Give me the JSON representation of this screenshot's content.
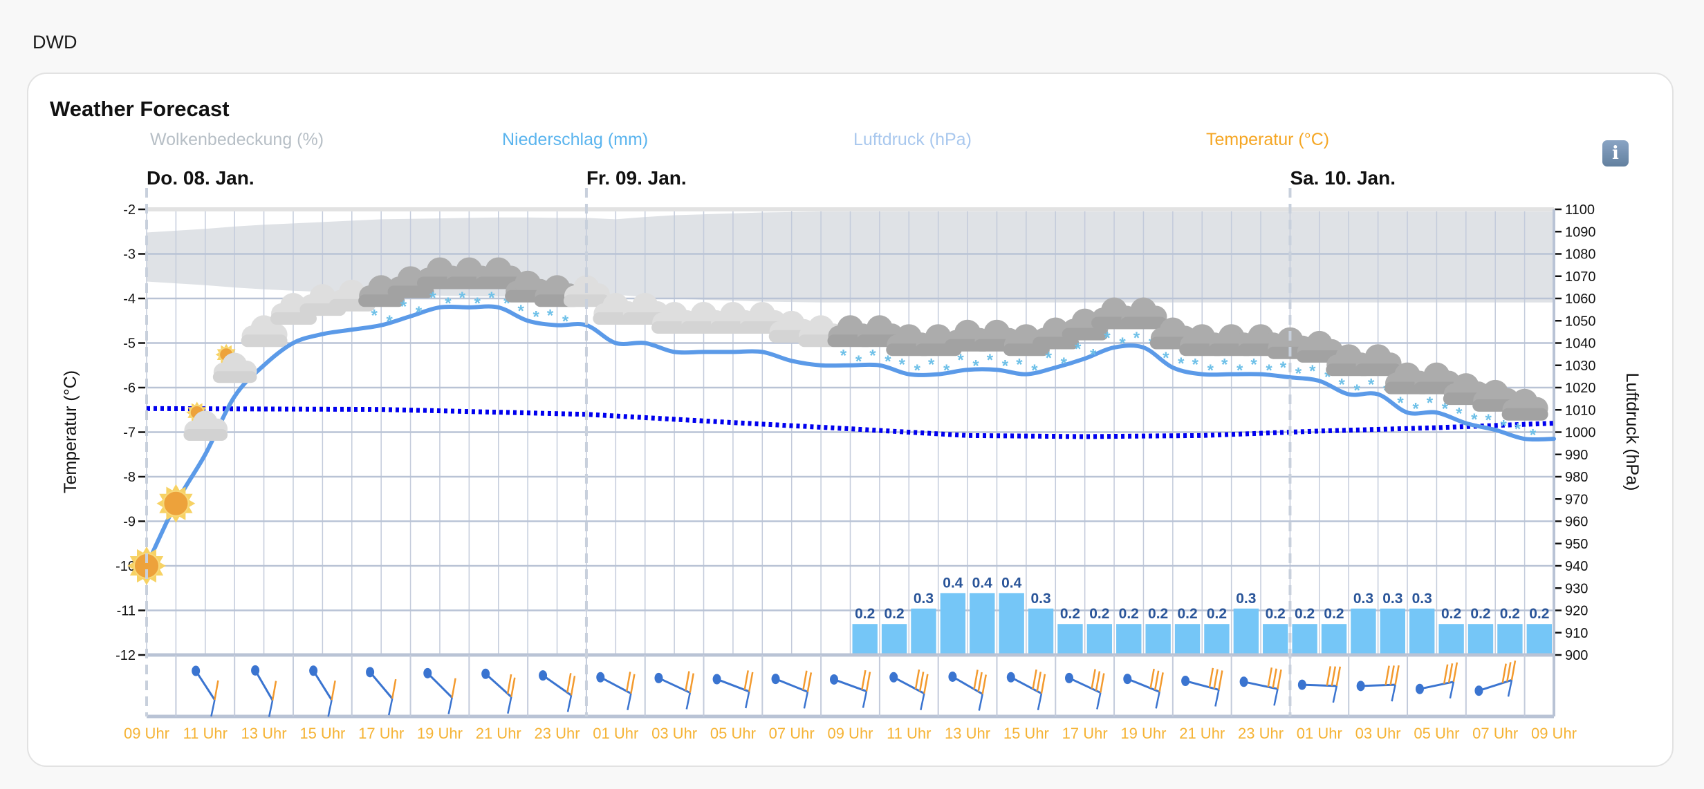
{
  "app_title": "DWD",
  "card_title": "Weather Forecast",
  "info_icon": "info-icon",
  "colors": {
    "cloud_cover": "#b7bfc6",
    "precipitation": "#5ab4ee",
    "pressure": "#a9c8ee",
    "temperature": "#f5a623",
    "temp_line": "#5b9ae8",
    "pressure_line": "#0000ee",
    "bar": "#75c6f7",
    "bar_label": "#2a5599",
    "band": "#dfe2e6"
  },
  "chart_data": {
    "type": "line",
    "legend": [
      "Wolkenbedeckung (%)",
      "Niederschlag (mm)",
      "Luftdruck (hPa)",
      "Temperatur (°C)"
    ],
    "legend_position": "top",
    "ylabel_left": "Temperatur (°C)",
    "ylabel_right": "Luftdruck (hPa)",
    "ylim_left": [
      -12,
      -2
    ],
    "ylim_right": [
      900,
      1100
    ],
    "left_ticks": [
      "-2",
      "-3",
      "-4",
      "-5",
      "-6",
      "-7",
      "-8",
      "-9",
      "-10",
      "-11",
      "-12"
    ],
    "right_ticks": [
      "1100",
      "1090",
      "1080",
      "1070",
      "1060",
      "1050",
      "1040",
      "1030",
      "1020",
      "1010",
      "1000",
      "990",
      "980",
      "970",
      "960",
      "950",
      "940",
      "930",
      "920",
      "910",
      "900"
    ],
    "grid": true,
    "days": [
      {
        "label": "Do. 08. Jan.",
        "hour": 0
      },
      {
        "label": "Fr. 09. Jan.",
        "hour": 15
      },
      {
        "label": "Sa. 10. Jan.",
        "hour": 39
      }
    ],
    "x_labels": [
      "09 Uhr",
      "11 Uhr",
      "13 Uhr",
      "15 Uhr",
      "17 Uhr",
      "19 Uhr",
      "21 Uhr",
      "23 Uhr",
      "01 Uhr",
      "03 Uhr",
      "05 Uhr",
      "07 Uhr",
      "09 Uhr",
      "11 Uhr",
      "13 Uhr",
      "15 Uhr",
      "17 Uhr",
      "19 Uhr",
      "21 Uhr",
      "23 Uhr",
      "01 Uhr",
      "03 Uhr",
      "05 Uhr",
      "07 Uhr",
      "09 Uhr"
    ],
    "hours_total": 48,
    "temperature": [
      -10,
      -8.6,
      -7.5,
      -6.2,
      -5.5,
      -5.0,
      -4.8,
      -4.7,
      -4.6,
      -4.4,
      -4.2,
      -4.2,
      -4.2,
      -4.5,
      -4.6,
      -4.6,
      -5.0,
      -5.0,
      -5.2,
      -5.2,
      -5.2,
      -5.2,
      -5.4,
      -5.5,
      -5.5,
      -5.5,
      -5.7,
      -5.7,
      -5.6,
      -5.6,
      -5.7,
      -5.55,
      -5.35,
      -5.1,
      -5.1,
      -5.55,
      -5.7,
      -5.7,
      -5.7,
      -5.77,
      -5.85,
      -6.15,
      -6.15,
      -6.56,
      -6.56,
      -6.8,
      -6.95,
      -7.15,
      -7.15
    ],
    "pressure": {
      "hours": [
        0,
        8,
        15,
        20,
        24,
        28,
        32,
        36,
        40,
        44,
        48
      ],
      "values": [
        1010.6,
        1010.2,
        1008,
        1004.3,
        1001.5,
        998.5,
        998,
        998.5,
        1000.5,
        1002,
        1004
      ]
    },
    "cloud_cover": [
      54,
      58,
      62,
      67,
      71,
      74,
      77,
      80,
      83,
      84,
      85,
      86,
      87,
      87,
      86,
      86,
      83,
      88,
      92,
      94,
      96,
      98,
      99,
      100,
      100,
      100,
      100,
      100,
      100,
      100,
      100,
      100,
      100,
      100,
      100,
      100,
      100,
      100,
      100,
      100,
      100,
      100,
      100,
      100,
      100,
      100,
      100,
      100,
      100
    ],
    "precipitation": {
      "start_hour": 24,
      "values": [
        0.2,
        0.2,
        0.3,
        0.4,
        0.4,
        0.4,
        0.3,
        0.2,
        0.2,
        0.2,
        0.2,
        0.2,
        0.2,
        0.3,
        0.2,
        0.2,
        0.2,
        0.3,
        0.3,
        0.3,
        0.2,
        0.2,
        0.2,
        0.2
      ],
      "labels": [
        "0.2",
        "0.2",
        "0.3",
        "0.4",
        "0.4",
        "0.4",
        "0.3",
        "0.2",
        "0.2",
        "0.2",
        "0.2",
        "0.2",
        "0.2",
        "0.3",
        "0.2",
        "0.2",
        "0.2",
        "0.3",
        "0.3",
        "0.3",
        "0.2",
        "0.2",
        "0.2",
        "0.2"
      ]
    },
    "weather_icons": [
      "sun",
      "sun",
      "partly-cloudy",
      "partly-cloudy",
      "cloudy",
      "cloudy",
      "cloudy",
      "cloudy",
      "snow",
      "snow",
      "snow",
      "snow",
      "snow",
      "snow",
      "snow",
      "cloudy",
      "cloudy",
      "cloudy",
      "cloudy",
      "cloudy",
      "cloudy",
      "cloudy",
      "cloudy",
      "cloudy",
      "snow",
      "snow",
      "snow",
      "snow",
      "snow",
      "snow",
      "snow",
      "snow",
      "snow",
      "snow",
      "snow",
      "snow",
      "snow",
      "snow",
      "snow",
      "snow",
      "snow",
      "snow",
      "snow",
      "snow",
      "snow",
      "snow",
      "snow",
      "snow"
    ],
    "wind_barbs": [
      {
        "hour": 2,
        "angle": 57,
        "feathers": 1
      },
      {
        "hour": 4,
        "angle": 60,
        "feathers": 1
      },
      {
        "hour": 6,
        "angle": 58,
        "feathers": 1
      },
      {
        "hour": 8,
        "angle": 50,
        "feathers": 1
      },
      {
        "hour": 10,
        "angle": 45,
        "feathers": 1
      },
      {
        "hour": 12,
        "angle": 42,
        "feathers": 2
      },
      {
        "hour": 14,
        "angle": 35,
        "feathers": 2
      },
      {
        "hour": 16,
        "angle": 28,
        "feathers": 2
      },
      {
        "hour": 18,
        "angle": 25,
        "feathers": 2
      },
      {
        "hour": 20,
        "angle": 21,
        "feathers": 2
      },
      {
        "hour": 22,
        "angle": 22,
        "feathers": 2
      },
      {
        "hour": 24,
        "angle": 20,
        "feathers": 2
      },
      {
        "hour": 26,
        "angle": 28,
        "feathers": 3
      },
      {
        "hour": 28,
        "angle": 30,
        "feathers": 3
      },
      {
        "hour": 30,
        "angle": 28,
        "feathers": 3
      },
      {
        "hour": 32,
        "angle": 25,
        "feathers": 3
      },
      {
        "hour": 34,
        "angle": 22,
        "feathers": 3
      },
      {
        "hour": 36,
        "angle": 15,
        "feathers": 3
      },
      {
        "hour": 38,
        "angle": 12,
        "feathers": 3
      },
      {
        "hour": 40,
        "angle": 2,
        "feathers": 3
      },
      {
        "hour": 42,
        "angle": -2,
        "feathers": 3
      },
      {
        "hour": 44,
        "angle": -12,
        "feathers": 3
      },
      {
        "hour": 46,
        "angle": -18,
        "feathers": 3
      }
    ]
  }
}
